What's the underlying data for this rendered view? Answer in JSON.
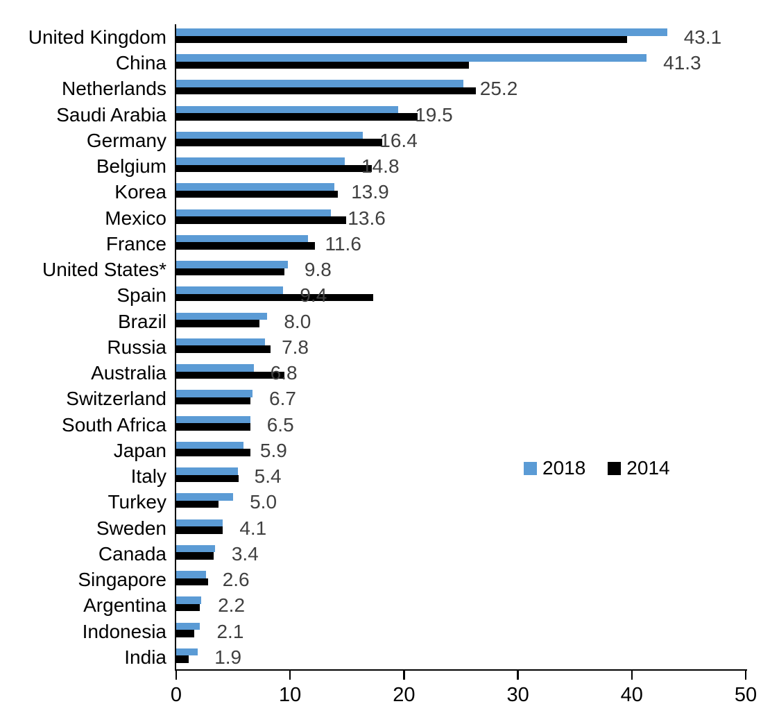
{
  "chart_data": {
    "type": "bar",
    "orientation": "horizontal",
    "title": "",
    "xlabel": "",
    "ylabel": "",
    "xlim": [
      0,
      50
    ],
    "x_ticks": [
      "0",
      "10",
      "20",
      "30",
      "40",
      "50"
    ],
    "grid": false,
    "legend_position": "middle-right",
    "categories": [
      "United Kingdom",
      "China",
      "Netherlands",
      "Saudi Arabia",
      "Germany",
      "Belgium",
      "Korea",
      "Mexico",
      "France",
      "United States*",
      "Spain",
      "Brazil",
      "Russia",
      "Australia",
      "Switzerland",
      "South Africa",
      "Japan",
      "Italy",
      "Turkey",
      "Sweden",
      "Canada",
      "Singapore",
      "Argentina",
      "Indonesia",
      "India"
    ],
    "series": [
      {
        "name": "2018",
        "color": "#5B9BD5",
        "values": [
          43.1,
          41.3,
          25.2,
          19.5,
          16.4,
          14.8,
          13.9,
          13.6,
          11.6,
          9.8,
          9.4,
          8.0,
          7.8,
          6.8,
          6.7,
          6.5,
          5.9,
          5.4,
          5.0,
          4.1,
          3.4,
          2.6,
          2.2,
          2.1,
          1.9
        ]
      },
      {
        "name": "2014",
        "color": "#000000",
        "values": [
          39.6,
          25.7,
          26.3,
          21.2,
          18.1,
          17.2,
          14.2,
          14.9,
          12.2,
          9.5,
          17.3,
          7.3,
          8.3,
          9.5,
          6.5,
          6.5,
          6.5,
          5.5,
          3.7,
          4.1,
          3.3,
          2.8,
          2.1,
          1.6,
          1.1
        ]
      }
    ],
    "data_labels": {
      "series": "2018",
      "color": "#404040",
      "values": [
        "43.1",
        "41.3",
        "25.2",
        "19.5",
        "16.4",
        "14.8",
        "13.9",
        "13.6",
        "11.6",
        "9.8",
        "9.4",
        "8.0",
        "7.8",
        "6.8",
        "6.7",
        "6.5",
        "5.9",
        "5.4",
        "5.0",
        "4.1",
        "3.4",
        "2.6",
        "2.2",
        "2.1",
        "1.9"
      ]
    },
    "axis_color": "#000000"
  }
}
